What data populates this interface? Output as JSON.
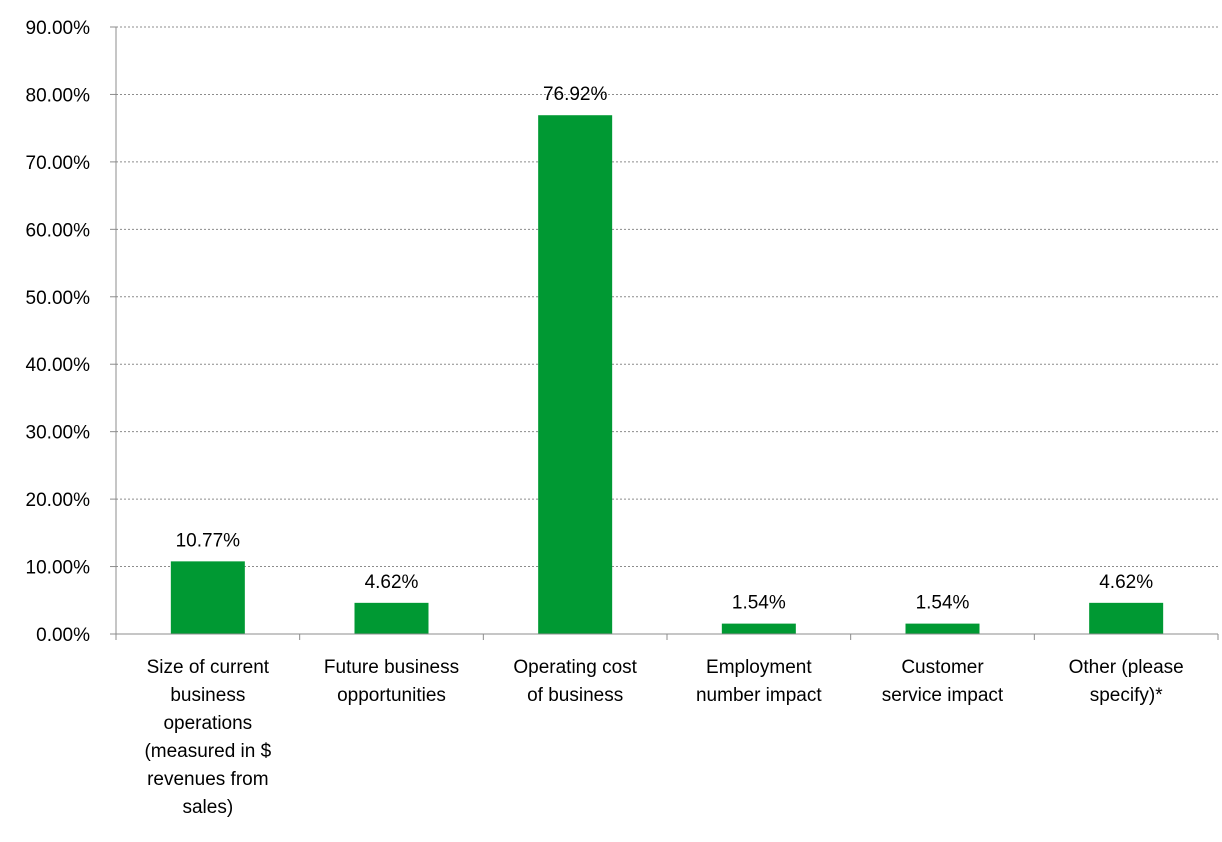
{
  "chart_data": {
    "type": "bar",
    "categories": [
      [
        "Size of current",
        "business",
        "operations",
        "(measured in $",
        "revenues from",
        "sales)"
      ],
      [
        "Future business",
        "opportunities"
      ],
      [
        "Operating cost",
        "of business"
      ],
      [
        "Employment",
        "number impact"
      ],
      [
        "Customer",
        "service impact"
      ],
      [
        "Other (please",
        "specify)*"
      ]
    ],
    "values": [
      10.77,
      4.62,
      76.92,
      1.54,
      1.54,
      4.62
    ],
    "data_labels": [
      "10.77%",
      "4.62%",
      "76.92%",
      "1.54%",
      "1.54%",
      "4.62%"
    ],
    "yticks": [
      "0.00%",
      "10.00%",
      "20.00%",
      "30.00%",
      "40.00%",
      "50.00%",
      "60.00%",
      "70.00%",
      "80.00%",
      "90.00%"
    ],
    "ylim": [
      0,
      90
    ],
    "grid": true,
    "legend": "none",
    "bar_color": "#009933"
  }
}
